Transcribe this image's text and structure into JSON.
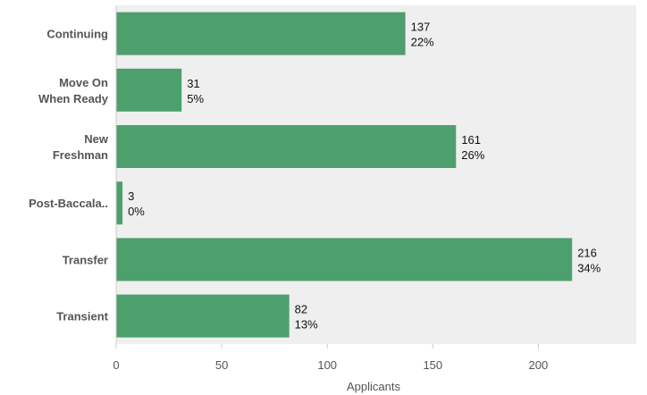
{
  "chart_data": {
    "type": "bar",
    "orientation": "horizontal",
    "title": "",
    "xlabel": "Applicants",
    "ylabel": "",
    "xlim": [
      0,
      247
    ],
    "xticks": [
      0,
      50,
      100,
      150,
      200
    ],
    "grid": false,
    "categories": [
      "Continuing",
      "Move On\nWhen Ready",
      "New\nFreshman",
      "Post-Baccala..",
      "Transfer",
      "Transient"
    ],
    "values": [
      137,
      31,
      161,
      3,
      216,
      82
    ],
    "percent_labels": [
      "22%",
      "5%",
      "26%",
      "0%",
      "34%",
      "13%"
    ],
    "value_labels": [
      "137",
      "31",
      "161",
      "3",
      "216",
      "82"
    ],
    "colors": {
      "bar": "#4e9f6e",
      "plot_bg": "#efefef",
      "axis": "#cccccc"
    }
  }
}
